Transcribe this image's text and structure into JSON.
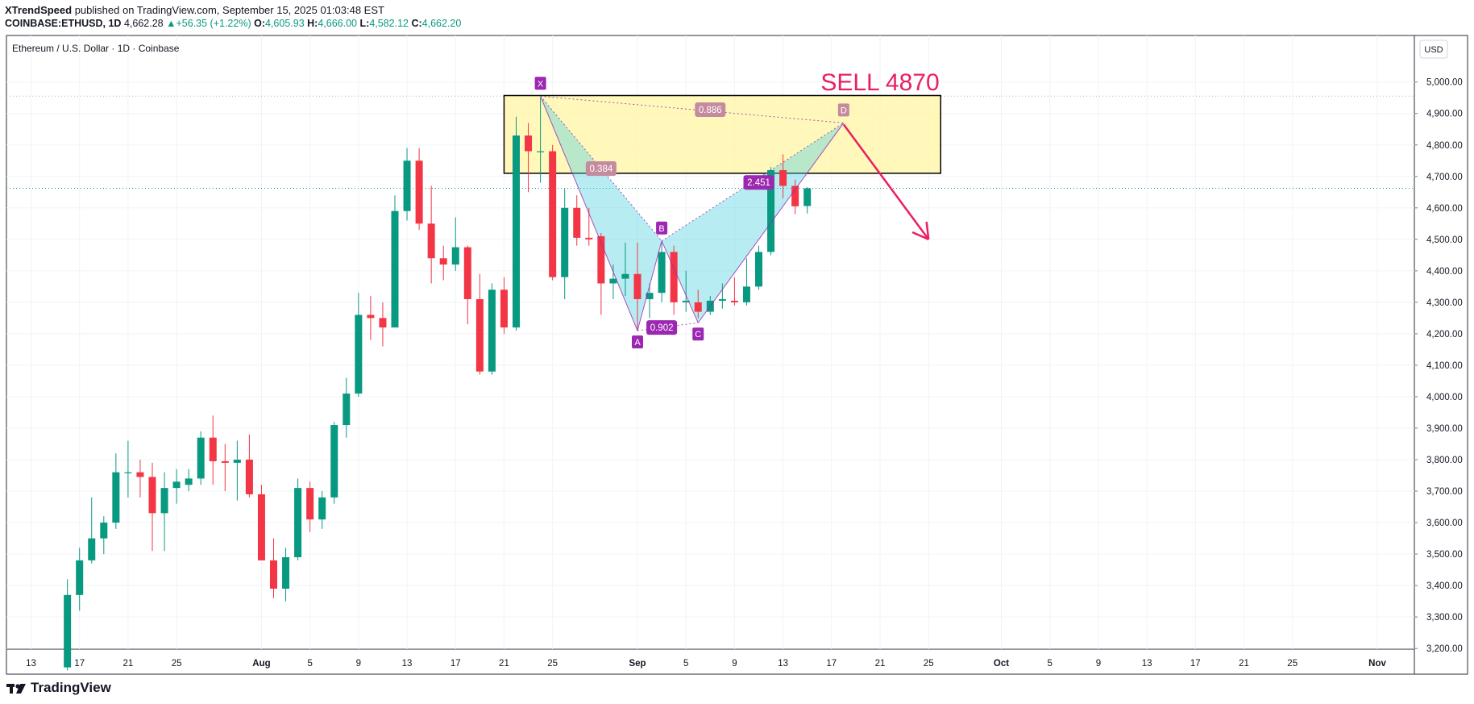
{
  "header": {
    "author": "XTrendSpeed",
    "published_text": "published on TradingView.com, September 15, 2025 01:03:48 EST",
    "symbol": "COINBASE:ETHUSD, 1D",
    "last_price": "4,662.28",
    "change_arrow": "▲",
    "change": "+56.35 (+1.22%)",
    "open_label": "O:",
    "open": "4,605.93",
    "high_label": "H:",
    "high": "4,666.00",
    "low_label": "L:",
    "low": "4,582.12",
    "close_label": "C:",
    "close": "4,662.20"
  },
  "chart_title": "Ethereum / U.S. Dollar · 1D · Coinbase",
  "currency": "USD",
  "footer": {
    "brand": "TradingView"
  },
  "colors": {
    "up": "#089981",
    "down": "#f23645",
    "zone": "#fff59d",
    "pattern": "#9c27b0",
    "sell": "#e91e63"
  },
  "chart_data": {
    "type": "candlestick",
    "ylim": [
      3200,
      5060
    ],
    "y_ticks": [
      3200,
      3300,
      3400,
      3500,
      3600,
      3700,
      3800,
      3900,
      4000,
      4100,
      4200,
      4300,
      4400,
      4500,
      4600,
      4700,
      4800,
      4900,
      5000
    ],
    "y_tick_labels": [
      "3,200.00",
      "3,300.00",
      "3,400.00",
      "3,500.00",
      "3,600.00",
      "3,700.00",
      "3,800.00",
      "3,900.00",
      "4,000.00",
      "4,100.00",
      "4,200.00",
      "4,300.00",
      "4,400.00",
      "4,500.00",
      "4,600.00",
      "4,700.00",
      "4,800.00",
      "4,900.00",
      "5,000.00"
    ],
    "x_tick_labels": [
      {
        "date": "2025-07-13",
        "label": "13"
      },
      {
        "date": "2025-07-17",
        "label": "17"
      },
      {
        "date": "2025-07-21",
        "label": "21"
      },
      {
        "date": "2025-07-25",
        "label": "25"
      },
      {
        "date": "2025-08-01",
        "label": "Aug"
      },
      {
        "date": "2025-08-05",
        "label": "5"
      },
      {
        "date": "2025-08-09",
        "label": "9"
      },
      {
        "date": "2025-08-13",
        "label": "13"
      },
      {
        "date": "2025-08-17",
        "label": "17"
      },
      {
        "date": "2025-08-21",
        "label": "21"
      },
      {
        "date": "2025-08-25",
        "label": "25"
      },
      {
        "date": "2025-09-01",
        "label": "Sep"
      },
      {
        "date": "2025-09-05",
        "label": "5"
      },
      {
        "date": "2025-09-09",
        "label": "9"
      },
      {
        "date": "2025-09-13",
        "label": "13"
      },
      {
        "date": "2025-09-17",
        "label": "17"
      },
      {
        "date": "2025-09-21",
        "label": "21"
      },
      {
        "date": "2025-09-25",
        "label": "25"
      },
      {
        "date": "2025-10-01",
        "label": "Oct"
      },
      {
        "date": "2025-10-05",
        "label": "5"
      },
      {
        "date": "2025-10-09",
        "label": "9"
      },
      {
        "date": "2025-10-13",
        "label": "13"
      },
      {
        "date": "2025-10-17",
        "label": "17"
      },
      {
        "date": "2025-10-21",
        "label": "21"
      },
      {
        "date": "2025-10-25",
        "label": "25"
      },
      {
        "date": "2025-11-01",
        "label": "Nov"
      }
    ],
    "candles": [
      {
        "date": "2025-07-16",
        "o": 3140,
        "h": 3420,
        "l": 3130,
        "c": 3370
      },
      {
        "date": "2025-07-17",
        "o": 3370,
        "h": 3520,
        "l": 3320,
        "c": 3480
      },
      {
        "date": "2025-07-18",
        "o": 3480,
        "h": 3680,
        "l": 3470,
        "c": 3550
      },
      {
        "date": "2025-07-19",
        "o": 3550,
        "h": 3620,
        "l": 3500,
        "c": 3600
      },
      {
        "date": "2025-07-20",
        "o": 3600,
        "h": 3820,
        "l": 3580,
        "c": 3760
      },
      {
        "date": "2025-07-21",
        "o": 3760,
        "h": 3860,
        "l": 3680,
        "c": 3760
      },
      {
        "date": "2025-07-22",
        "o": 3760,
        "h": 3800,
        "l": 3680,
        "c": 3745
      },
      {
        "date": "2025-07-23",
        "o": 3745,
        "h": 3790,
        "l": 3510,
        "c": 3630
      },
      {
        "date": "2025-07-24",
        "o": 3630,
        "h": 3760,
        "l": 3510,
        "c": 3710
      },
      {
        "date": "2025-07-25",
        "o": 3710,
        "h": 3770,
        "l": 3660,
        "c": 3730
      },
      {
        "date": "2025-07-26",
        "o": 3720,
        "h": 3770,
        "l": 3700,
        "c": 3740
      },
      {
        "date": "2025-07-27",
        "o": 3740,
        "h": 3890,
        "l": 3720,
        "c": 3870
      },
      {
        "date": "2025-07-28",
        "o": 3870,
        "h": 3940,
        "l": 3720,
        "c": 3795
      },
      {
        "date": "2025-07-29",
        "o": 3795,
        "h": 3850,
        "l": 3700,
        "c": 3790
      },
      {
        "date": "2025-07-30",
        "o": 3790,
        "h": 3860,
        "l": 3670,
        "c": 3800
      },
      {
        "date": "2025-07-31",
        "o": 3800,
        "h": 3880,
        "l": 3680,
        "c": 3690
      },
      {
        "date": "2025-08-01",
        "o": 3690,
        "h": 3720,
        "l": 3480,
        "c": 3480
      },
      {
        "date": "2025-08-02",
        "o": 3480,
        "h": 3550,
        "l": 3360,
        "c": 3390
      },
      {
        "date": "2025-08-03",
        "o": 3390,
        "h": 3520,
        "l": 3350,
        "c": 3490
      },
      {
        "date": "2025-08-04",
        "o": 3490,
        "h": 3740,
        "l": 3480,
        "c": 3710
      },
      {
        "date": "2025-08-05",
        "o": 3710,
        "h": 3730,
        "l": 3570,
        "c": 3610
      },
      {
        "date": "2025-08-06",
        "o": 3610,
        "h": 3700,
        "l": 3580,
        "c": 3680
      },
      {
        "date": "2025-08-07",
        "o": 3680,
        "h": 3920,
        "l": 3660,
        "c": 3910
      },
      {
        "date": "2025-08-08",
        "o": 3910,
        "h": 4060,
        "l": 3870,
        "c": 4010
      },
      {
        "date": "2025-08-09",
        "o": 4010,
        "h": 4330,
        "l": 4000,
        "c": 4260
      },
      {
        "date": "2025-08-10",
        "o": 4260,
        "h": 4320,
        "l": 4180,
        "c": 4250
      },
      {
        "date": "2025-08-11",
        "o": 4250,
        "h": 4300,
        "l": 4160,
        "c": 4220
      },
      {
        "date": "2025-08-12",
        "o": 4220,
        "h": 4640,
        "l": 4220,
        "c": 4590
      },
      {
        "date": "2025-08-13",
        "o": 4590,
        "h": 4790,
        "l": 4560,
        "c": 4750
      },
      {
        "date": "2025-08-14",
        "o": 4750,
        "h": 4790,
        "l": 4530,
        "c": 4550
      },
      {
        "date": "2025-08-15",
        "o": 4550,
        "h": 4670,
        "l": 4360,
        "c": 4440
      },
      {
        "date": "2025-08-16",
        "o": 4440,
        "h": 4480,
        "l": 4370,
        "c": 4420
      },
      {
        "date": "2025-08-17",
        "o": 4420,
        "h": 4570,
        "l": 4400,
        "c": 4475
      },
      {
        "date": "2025-08-18",
        "o": 4475,
        "h": 4480,
        "l": 4230,
        "c": 4310
      },
      {
        "date": "2025-08-19",
        "o": 4310,
        "h": 4390,
        "l": 4070,
        "c": 4080
      },
      {
        "date": "2025-08-20",
        "o": 4080,
        "h": 4360,
        "l": 4070,
        "c": 4340
      },
      {
        "date": "2025-08-21",
        "o": 4340,
        "h": 4380,
        "l": 4200,
        "c": 4220
      },
      {
        "date": "2025-08-22",
        "o": 4220,
        "h": 4890,
        "l": 4210,
        "c": 4830
      },
      {
        "date": "2025-08-23",
        "o": 4830,
        "h": 4870,
        "l": 4650,
        "c": 4780
      },
      {
        "date": "2025-08-24",
        "o": 4780,
        "h": 4950,
        "l": 4680,
        "c": 4780
      },
      {
        "date": "2025-08-25",
        "o": 4780,
        "h": 4800,
        "l": 4370,
        "c": 4380
      },
      {
        "date": "2025-08-26",
        "o": 4380,
        "h": 4660,
        "l": 4310,
        "c": 4600
      },
      {
        "date": "2025-08-27",
        "o": 4600,
        "h": 4640,
        "l": 4480,
        "c": 4505
      },
      {
        "date": "2025-08-28",
        "o": 4505,
        "h": 4600,
        "l": 4480,
        "c": 4500
      },
      {
        "date": "2025-08-29",
        "o": 4510,
        "h": 4520,
        "l": 4260,
        "c": 4360
      },
      {
        "date": "2025-08-30",
        "o": 4360,
        "h": 4420,
        "l": 4310,
        "c": 4375
      },
      {
        "date": "2025-08-31",
        "o": 4375,
        "h": 4490,
        "l": 4320,
        "c": 4390
      },
      {
        "date": "2025-09-01",
        "o": 4390,
        "h": 4490,
        "l": 4210,
        "c": 4310
      },
      {
        "date": "2025-09-02",
        "o": 4310,
        "h": 4360,
        "l": 4250,
        "c": 4330
      },
      {
        "date": "2025-09-03",
        "o": 4330,
        "h": 4490,
        "l": 4300,
        "c": 4460
      },
      {
        "date": "2025-09-04",
        "o": 4460,
        "h": 4480,
        "l": 4260,
        "c": 4300
      },
      {
        "date": "2025-09-05",
        "o": 4300,
        "h": 4400,
        "l": 4270,
        "c": 4305
      },
      {
        "date": "2025-09-06",
        "o": 4300,
        "h": 4340,
        "l": 4250,
        "c": 4270
      },
      {
        "date": "2025-09-07",
        "o": 4270,
        "h": 4320,
        "l": 4260,
        "c": 4305
      },
      {
        "date": "2025-09-08",
        "o": 4305,
        "h": 4360,
        "l": 4280,
        "c": 4310
      },
      {
        "date": "2025-09-09",
        "o": 4305,
        "h": 4380,
        "l": 4290,
        "c": 4300
      },
      {
        "date": "2025-09-10",
        "o": 4300,
        "h": 4440,
        "l": 4290,
        "c": 4350
      },
      {
        "date": "2025-09-11",
        "o": 4350,
        "h": 4480,
        "l": 4340,
        "c": 4460
      },
      {
        "date": "2025-09-12",
        "o": 4460,
        "h": 4730,
        "l": 4450,
        "c": 4720
      },
      {
        "date": "2025-09-13",
        "o": 4720,
        "h": 4770,
        "l": 4630,
        "c": 4670
      },
      {
        "date": "2025-09-14",
        "o": 4670,
        "h": 4690,
        "l": 4580,
        "c": 4605
      },
      {
        "date": "2025-09-15",
        "o": 4605.93,
        "h": 4666.0,
        "l": 4582.12,
        "c": 4662.2
      }
    ],
    "pattern_points": [
      {
        "label": "X",
        "date": "2025-08-24",
        "price": 4955
      },
      {
        "label": "A",
        "date": "2025-09-01",
        "price": 4210
      },
      {
        "label": "B",
        "date": "2025-09-03",
        "price": 4495
      },
      {
        "label": "C",
        "date": "2025-09-06",
        "price": 4235
      },
      {
        "label": "D",
        "date": "2025-09-18",
        "price": 4870
      }
    ],
    "ratios": [
      {
        "text": "0.384",
        "date": "2025-08-29",
        "price": 4725
      },
      {
        "text": "0.886",
        "date": "2025-09-07",
        "price": 4912
      },
      {
        "text": "0.902",
        "date": "2025-09-03",
        "price": 4220
      },
      {
        "text": "2.451",
        "date": "2025-09-11",
        "price": 4681
      }
    ],
    "zone": {
      "date_start": "2025-08-21",
      "date_end": "2025-09-26",
      "price_top": 4957,
      "price_bottom": 4710
    },
    "dotted_levels": [
      4955,
      4662.2
    ],
    "annotation": {
      "text": "SELL 4870",
      "date": "2025-09-21",
      "price": 5010
    },
    "arrow": {
      "date_start": "2025-09-18",
      "price_start": 4865,
      "date_end": "2025-09-25",
      "price_end": 4500
    }
  }
}
